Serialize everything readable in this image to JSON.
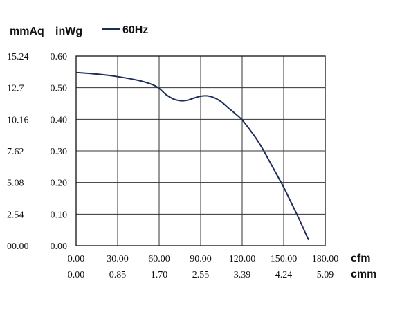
{
  "chart_data": {
    "type": "line",
    "x_unit": "cfm",
    "x2_unit": "cmm",
    "y_unit": "inWg",
    "y2_unit": "mmAq",
    "xlim": [
      0,
      180
    ],
    "ylim": [
      0,
      0.6
    ],
    "grid": true,
    "legend_position": "top-left",
    "x_ticks": [
      "0.00",
      "30.00",
      "60.00",
      "90.00",
      "120.00",
      "150.00",
      "180.00"
    ],
    "x2_ticks": [
      "0.00",
      "0.85",
      "1.70",
      "2.55",
      "3.39",
      "4.24",
      "5.09"
    ],
    "y_ticks": [
      "0.00",
      "0.10",
      "0.20",
      "0.30",
      "0.40",
      "0.50",
      "0.60"
    ],
    "y2_ticks": [
      "00.00",
      "2.54",
      "5.08",
      "7.62",
      "10.16",
      "12.7",
      "15.24"
    ],
    "series": [
      {
        "name": "60Hz",
        "color": "#1f2d5c",
        "x": [
          0,
          15,
          30,
          45,
          55,
          60,
          65,
          70,
          75,
          80,
          85,
          90,
          95,
          100,
          105,
          110,
          115,
          120,
          125,
          130,
          135,
          140,
          145,
          150,
          155,
          160,
          165,
          168
        ],
        "y": [
          0.548,
          0.543,
          0.535,
          0.523,
          0.51,
          0.498,
          0.478,
          0.465,
          0.459,
          0.46,
          0.467,
          0.473,
          0.474,
          0.468,
          0.455,
          0.436,
          0.418,
          0.398,
          0.37,
          0.34,
          0.305,
          0.265,
          0.225,
          0.185,
          0.14,
          0.095,
          0.047,
          0.018
        ]
      }
    ]
  }
}
